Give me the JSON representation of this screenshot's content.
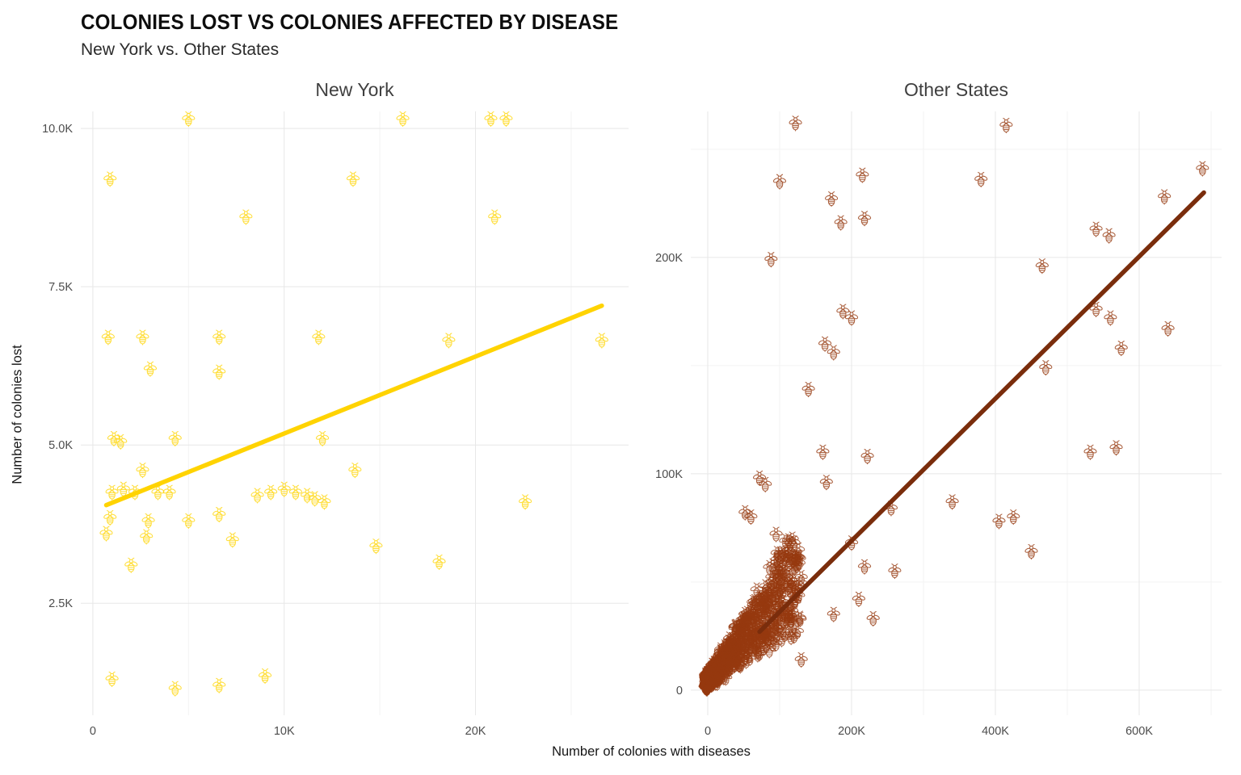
{
  "page": {
    "title": "COLONIES LOST VS COLONIES AFFECTED BY DISEASE",
    "subtitle": "New York vs. Other States"
  },
  "axes": {
    "x_label": "Number of colonies with diseases",
    "y_label": "Number of colonies lost"
  },
  "chart_data": [
    {
      "panel": "New York",
      "type": "scatter",
      "marker": "bee-icon",
      "units": "thousands",
      "color": "#FFD60A",
      "trend_color": "#FFD300",
      "x_dom": [
        -0.63,
        28.0
      ],
      "y_dom": [
        0.73,
        10.27
      ],
      "x_ticks": [
        {
          "v": 0,
          "label": "0"
        },
        {
          "v": 10,
          "label": "10K"
        },
        {
          "v": 20,
          "label": "20K"
        }
      ],
      "x_minor": [
        5,
        15,
        25
      ],
      "y_ticks": [
        {
          "v": 2.5,
          "label": "2.5K"
        },
        {
          "v": 5,
          "label": "5.0K"
        },
        {
          "v": 7.5,
          "label": "7.5K"
        },
        {
          "v": 10,
          "label": "10.0K"
        }
      ],
      "y_minor": [],
      "grid": true,
      "legend": "none",
      "points": [
        [
          5.0,
          10.15
        ],
        [
          16.2,
          10.15
        ],
        [
          20.8,
          10.15
        ],
        [
          21.6,
          10.15
        ],
        [
          0.9,
          9.2
        ],
        [
          13.6,
          9.2
        ],
        [
          8.0,
          8.6
        ],
        [
          21.0,
          8.6
        ],
        [
          0.8,
          6.7
        ],
        [
          2.6,
          6.7
        ],
        [
          6.6,
          6.7
        ],
        [
          11.8,
          6.7
        ],
        [
          18.6,
          6.65
        ],
        [
          26.6,
          6.65
        ],
        [
          3.0,
          6.2
        ],
        [
          6.6,
          6.15
        ],
        [
          1.1,
          5.1
        ],
        [
          1.45,
          5.05
        ],
        [
          4.3,
          5.1
        ],
        [
          12.0,
          5.1
        ],
        [
          2.6,
          4.6
        ],
        [
          13.7,
          4.6
        ],
        [
          1.0,
          4.25
        ],
        [
          1.6,
          4.3
        ],
        [
          2.2,
          4.25
        ],
        [
          3.4,
          4.25
        ],
        [
          4.0,
          4.25
        ],
        [
          8.6,
          4.2
        ],
        [
          9.3,
          4.25
        ],
        [
          10.0,
          4.3
        ],
        [
          10.6,
          4.25
        ],
        [
          11.2,
          4.2
        ],
        [
          11.6,
          4.15
        ],
        [
          12.1,
          4.1
        ],
        [
          22.6,
          4.1
        ],
        [
          0.9,
          3.85
        ],
        [
          2.9,
          3.8
        ],
        [
          5.0,
          3.8
        ],
        [
          6.6,
          3.9
        ],
        [
          0.7,
          3.6
        ],
        [
          2.8,
          3.55
        ],
        [
          7.3,
          3.5
        ],
        [
          14.8,
          3.4
        ],
        [
          18.1,
          3.15
        ],
        [
          2.0,
          3.1
        ],
        [
          1.0,
          1.3
        ],
        [
          9.0,
          1.35
        ],
        [
          4.3,
          1.15
        ],
        [
          6.6,
          1.2
        ]
      ],
      "trend": [
        [
          0.7,
          4.05
        ],
        [
          26.6,
          7.2
        ]
      ]
    },
    {
      "panel": "Other States",
      "type": "scatter",
      "marker": "bee-icon",
      "units": "thousands",
      "color": "#96390F",
      "trend_color": "#7A2D0C",
      "x_dom": [
        -23.6,
        714.6
      ],
      "y_dom": [
        -11.6,
        267.5
      ],
      "x_ticks": [
        {
          "v": 0,
          "label": "0"
        },
        {
          "v": 200,
          "label": "200K"
        },
        {
          "v": 400,
          "label": "400K"
        },
        {
          "v": 600,
          "label": "600K"
        }
      ],
      "x_minor": [
        100,
        300,
        500,
        700
      ],
      "y_ticks": [
        {
          "v": 0,
          "label": "0"
        },
        {
          "v": 100,
          "label": "100K"
        },
        {
          "v": 200,
          "label": "200K"
        }
      ],
      "y_minor": [
        50,
        150,
        250
      ],
      "grid": true,
      "legend": "none",
      "points": [
        [
          122,
          262
        ],
        [
          415,
          261
        ],
        [
          100,
          235
        ],
        [
          215,
          238
        ],
        [
          380,
          236
        ],
        [
          688,
          241
        ],
        [
          635,
          228
        ],
        [
          540,
          213
        ],
        [
          558,
          210
        ],
        [
          172,
          227
        ],
        [
          185,
          216
        ],
        [
          218,
          218
        ],
        [
          88,
          199
        ],
        [
          465,
          196
        ],
        [
          188,
          175
        ],
        [
          200,
          172
        ],
        [
          163,
          160
        ],
        [
          175,
          156
        ],
        [
          540,
          176
        ],
        [
          560,
          172
        ],
        [
          640,
          167
        ],
        [
          470,
          149
        ],
        [
          575,
          158
        ],
        [
          140,
          139
        ],
        [
          160,
          110
        ],
        [
          222,
          108
        ],
        [
          532,
          110
        ],
        [
          568,
          112
        ],
        [
          72,
          98
        ],
        [
          80,
          95
        ],
        [
          165,
          96
        ],
        [
          340,
          87
        ],
        [
          255,
          84
        ],
        [
          52,
          82
        ],
        [
          60,
          80
        ],
        [
          405,
          78
        ],
        [
          425,
          80
        ],
        [
          95,
          72
        ],
        [
          200,
          68
        ],
        [
          450,
          64
        ],
        [
          218,
          57
        ],
        [
          260,
          55
        ],
        [
          130,
          52
        ],
        [
          210,
          42
        ],
        [
          175,
          35
        ],
        [
          230,
          33
        ],
        [
          120,
          25
        ],
        [
          130,
          14
        ]
      ],
      "cluster": {
        "seed": 42,
        "count": 700,
        "x_power": 2.0,
        "x_max": 131,
        "slope_min": 0.2,
        "slope_max": 0.6,
        "noise": 8,
        "y_max": 70
      },
      "trend": [
        [
          72,
          27
        ],
        [
          690,
          230
        ]
      ]
    }
  ]
}
